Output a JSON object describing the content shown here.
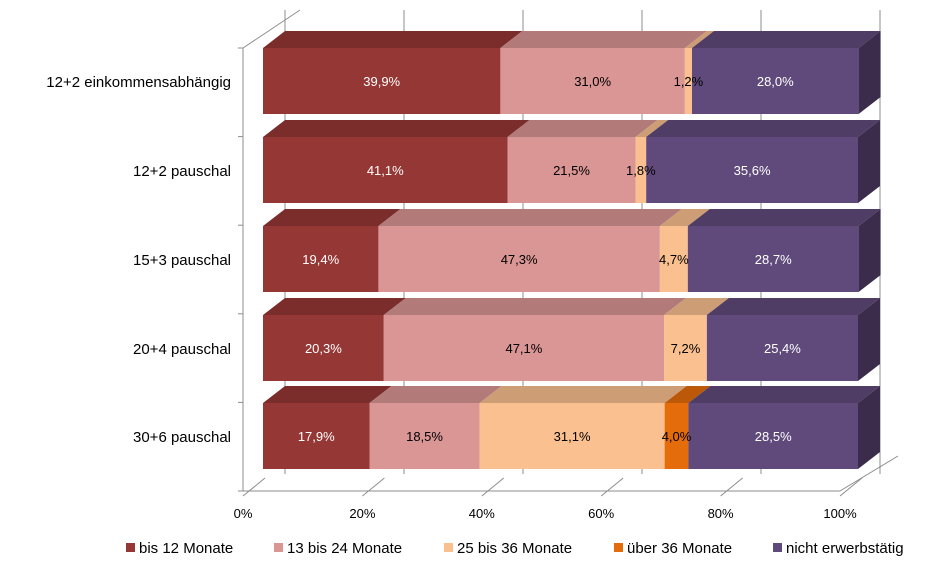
{
  "chart_data": {
    "type": "bar",
    "orientation": "horizontal",
    "stacked": "percent",
    "three_d": true,
    "categories": [
      "12+2 einkommensabhängig",
      "12+2 pauschal",
      "15+3 pauschal",
      "20+4 pauschal",
      "30+6 pauschal"
    ],
    "series": [
      {
        "name": "bis 12 Monate",
        "color": "#953735",
        "label_color": "#ffffff",
        "values": [
          39.9,
          41.1,
          19.4,
          20.3,
          17.9
        ],
        "labels": [
          "39,9%",
          "41,1%",
          "19,4%",
          "20,3%",
          "17,9%"
        ]
      },
      {
        "name": "13 bis 24 Monate",
        "color": "#d99694",
        "label_color": "#000000",
        "values": [
          31.0,
          21.5,
          47.3,
          47.1,
          18.5
        ],
        "labels": [
          "31,0%",
          "21,5%",
          "47,3%",
          "47,1%",
          "18,5%"
        ]
      },
      {
        "name": "25 bis 36 Monate",
        "color": "#fac090",
        "label_color": "#000000",
        "values": [
          1.2,
          1.8,
          4.7,
          7.2,
          31.1
        ],
        "labels": [
          "1,2%",
          "1,8%",
          "4,7%",
          "7,2%",
          "31,1%"
        ]
      },
      {
        "name": "über 36 Monate",
        "color": "#e46c0a",
        "label_color": "#000000",
        "values": [
          0,
          0,
          0,
          0,
          4.0
        ],
        "labels": [
          "",
          "",
          "",
          "",
          "4,0%"
        ]
      },
      {
        "name": "nicht erwerbstätig",
        "color": "#604a7b",
        "label_color": "#ffffff",
        "values": [
          28.0,
          35.6,
          28.7,
          25.4,
          28.5
        ],
        "labels": [
          "28,0%",
          "35,6%",
          "28,7%",
          "25,4%",
          "28,5%"
        ]
      }
    ],
    "x_ticks": [
      "0%",
      "20%",
      "40%",
      "60%",
      "80%",
      "100%"
    ],
    "xlim": [
      0,
      100
    ],
    "grid": true,
    "legend": "bottom"
  }
}
